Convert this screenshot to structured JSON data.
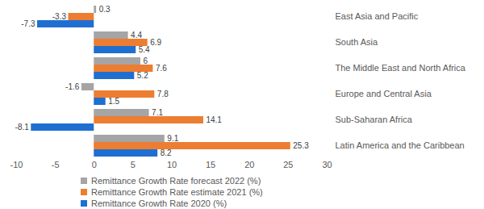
{
  "chart_data": {
    "type": "bar",
    "orientation": "horizontal",
    "categories": [
      "East Asia and Pacific",
      "South Asia",
      "The Middle East and North Africa",
      "Europe and Central Asia",
      "Sub-Saharan Africa",
      "Latin America and the Caribbean"
    ],
    "series": [
      {
        "name": "Remittance Growth Rate forecast 2022 (%)",
        "color": "#a5a5a5",
        "values": [
          0.3,
          4.4,
          6,
          -1.6,
          7.1,
          9.1
        ]
      },
      {
        "name": "Remittance Growth Rate estimate 2021 (%)",
        "color": "#ed7d31",
        "values": [
          -3.3,
          6.9,
          7.6,
          7.8,
          14.1,
          25.3
        ]
      },
      {
        "name": "Remittance Growth Rate 2020 (%)",
        "color": "#1f6fd1",
        "values": [
          -7.3,
          5.4,
          5.2,
          1.5,
          -8.1,
          8.2
        ]
      }
    ],
    "xlim": [
      -10,
      30
    ],
    "xticks": [
      -10,
      -5,
      0,
      5,
      10,
      15,
      20,
      25,
      30
    ],
    "data_labels": true,
    "legend": "bottom",
    "grid": false
  }
}
